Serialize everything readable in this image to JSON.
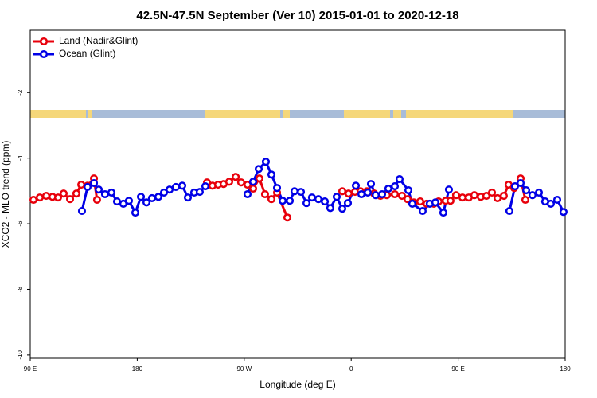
{
  "chart_data": {
    "type": "line",
    "title": "42.5N-47.5N September (Ver 10)   2015-01-01 to 2020-12-18",
    "x_label": "Longitude (deg E)",
    "y_label": "XCO2 - MLO trend (ppm)",
    "xlim": [
      90,
      540
    ],
    "ylim": [
      -10.1,
      -0.1
    ],
    "xticks": [
      {
        "value": 90,
        "label": "90 E"
      },
      180,
      {
        "value": 270,
        "label": "90 W"
      },
      {
        "value": 360,
        "label": "0"
      },
      {
        "value": 450,
        "label": "90 E"
      },
      {
        "value": 540,
        "label": "180"
      }
    ],
    "yticks": [
      -2,
      -4,
      -6,
      -8,
      -10
    ],
    "legend": "top-left",
    "series": [
      {
        "name": "Land (Nadir&Glint)",
        "color": "#e8000b",
        "x": [
          92.7,
          98.0,
          103.4,
          108.7,
          113.4,
          118.1,
          123.5,
          128.8,
          132.9,
          138.2,
          143.6,
          146.2,
          null,
          238.7,
          243.3,
          248.0,
          252.7,
          257.4,
          262.8,
          267.4,
          272.8,
          277.5,
          282.8,
          287.5,
          292.9,
          297.6,
          306.3,
          null,
          352.5,
          357.8,
          363.2,
          367.9,
          373.2,
          379.3,
          384.6,
          390.0,
          396.7,
          402.7,
          407.4,
          412.7,
          418.1,
          423.5,
          429.5,
          433.5,
          439.5,
          443.5,
          448.2,
          453.6,
          458.9,
          463.6,
          469.0,
          473.7,
          478.4,
          483.1,
          488.4,
          492.4,
          497.1,
          502.5,
          506.5
        ],
        "values": [
          -5.27,
          -5.2,
          -5.15,
          -5.18,
          -5.2,
          -5.08,
          -5.25,
          -5.08,
          -4.81,
          -4.84,
          -4.62,
          -5.27,
          null,
          -4.74,
          -4.84,
          -4.81,
          -4.79,
          -4.72,
          -4.57,
          -4.74,
          -4.81,
          -4.93,
          -4.62,
          -5.1,
          -5.25,
          -5.05,
          -5.81,
          null,
          -5.01,
          -5.08,
          -5.03,
          -5.01,
          -5.01,
          -5.08,
          -5.15,
          -5.13,
          -5.1,
          -5.15,
          -5.25,
          -5.35,
          -5.32,
          -5.39,
          -5.39,
          -5.32,
          -5.3,
          -5.3,
          -5.13,
          -5.2,
          -5.2,
          -5.13,
          -5.18,
          -5.15,
          -5.05,
          -5.22,
          -5.15,
          -4.81,
          -4.91,
          -4.62,
          -5.27
        ]
      },
      {
        "name": "Ocean (Glint)",
        "color": "#0000e6",
        "x": [
          133.5,
          138.2,
          143.6,
          147.6,
          152.9,
          158.3,
          163.0,
          168.3,
          173.0,
          178.4,
          183.1,
          187.8,
          192.4,
          197.8,
          202.5,
          207.2,
          212.5,
          217.9,
          222.6,
          227.9,
          232.6,
          237.3,
          null,
          272.8,
          277.5,
          282.2,
          288.2,
          292.9,
          297.6,
          302.3,
          308.3,
          312.3,
          317.7,
          322.4,
          327.0,
          332.4,
          337.8,
          342.4,
          347.8,
          352.5,
          357.2,
          363.9,
          368.6,
          373.9,
          376.6,
          380.6,
          386.0,
          391.3,
          396.7,
          400.7,
          408.1,
          411.4,
          420.1,
          426.1,
          430.8,
          437.5,
          442.2,
          null,
          493.1,
          497.8,
          502.5,
          507.2,
          512.5,
          517.9,
          523.2,
          527.9,
          533.3,
          538.6
        ],
        "values": [
          -5.61,
          -4.88,
          -4.76,
          -4.96,
          -5.1,
          -5.05,
          -5.32,
          -5.39,
          -5.3,
          -5.66,
          -5.18,
          -5.35,
          -5.22,
          -5.18,
          -5.05,
          -4.96,
          -4.88,
          -4.84,
          -5.2,
          -5.05,
          -5.03,
          -4.86,
          null,
          -5.1,
          -4.72,
          -4.33,
          -4.11,
          -4.5,
          -4.91,
          -5.3,
          -5.3,
          -5.01,
          -5.03,
          -5.37,
          -5.2,
          -5.25,
          -5.32,
          -5.52,
          -5.18,
          -5.54,
          -5.37,
          -4.84,
          -5.1,
          -5.05,
          -4.79,
          -5.13,
          -5.1,
          -4.93,
          -4.86,
          -4.64,
          -4.98,
          -5.39,
          -5.61,
          -5.39,
          -5.35,
          -5.66,
          -4.96,
          null,
          -5.61,
          -4.86,
          -4.76,
          -4.98,
          -5.13,
          -5.05,
          -5.32,
          -5.39,
          -5.27,
          -5.64
        ]
      }
    ]
  }
}
